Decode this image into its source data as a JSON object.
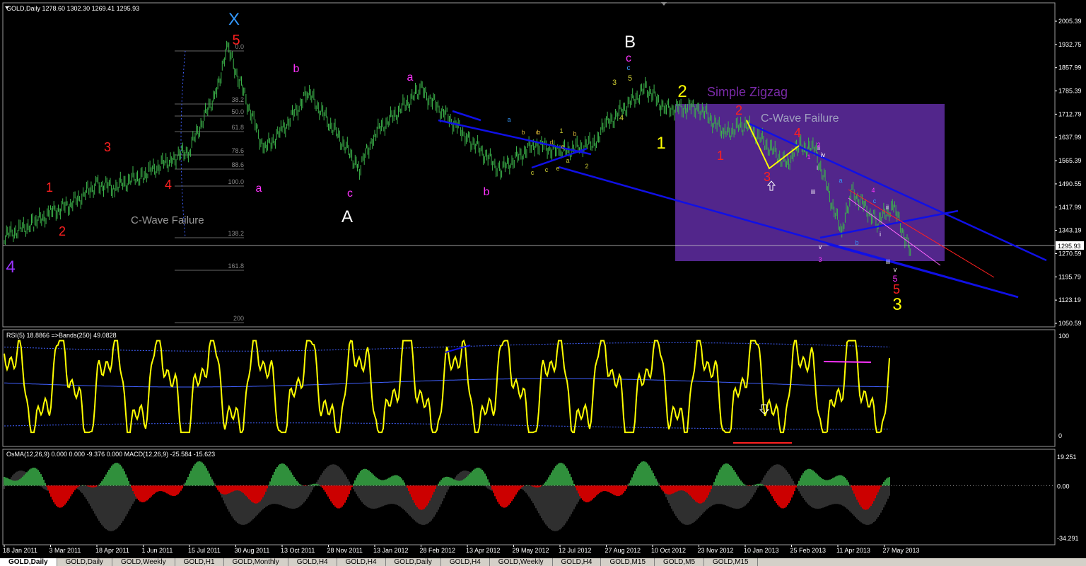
{
  "colors": {
    "background": "#000000",
    "candle": "#3cb44b",
    "grid": "#ffffff",
    "panel_border": "#9a9a9a",
    "axis_text": "#ffffff",
    "trendline": "#1010e6",
    "box": "#5b2a9a",
    "rsi_line": "#ffff00",
    "rsi_band": "#4060ff",
    "osma_pos": "#3cb44b",
    "osma_neg": "#ff0000",
    "macd_line": "#c0c0c0"
  },
  "main": {
    "header": "GOLD,Daily  1278.60 1302.30 1269.41 1295.93",
    "current_price": "1295.93",
    "price_ticks": [
      "2005.39",
      "1932.75",
      "1857.99",
      "1785.39",
      "1712.79",
      "1637.99",
      "1565.39",
      "1490.55",
      "1417.99",
      "1343.19",
      "1270.59",
      "1195.79",
      "1123.19",
      "1050.59"
    ],
    "fib_levels": [
      "0.0",
      "38.2",
      "50.0",
      "61.8",
      "78.6",
      "88.6",
      "100.0",
      "138.2",
      "161.8",
      "200"
    ],
    "box_title": "Simple Zigzag",
    "box_subtitle": "C-Wave Failure",
    "left_note": "C-Wave Failure",
    "wave_labels": [
      {
        "text": "X",
        "color": "#3399ff"
      },
      {
        "text": "5",
        "color": "#ff2020"
      },
      {
        "text": "B",
        "color": "#ffffff"
      },
      {
        "text": "A",
        "color": "#ffffff"
      },
      {
        "text": "1",
        "color": "#ff2020"
      },
      {
        "text": "2",
        "color": "#ff2020"
      },
      {
        "text": "3",
        "color": "#ff2020"
      },
      {
        "text": "4",
        "color": "#ff2020"
      },
      {
        "text": "a",
        "color": "#ff33ff"
      },
      {
        "text": "b",
        "color": "#ff33ff"
      },
      {
        "text": "a",
        "color": "#ff33ff"
      },
      {
        "text": "c",
        "color": "#ff33ff"
      },
      {
        "text": "b",
        "color": "#ff33ff"
      },
      {
        "text": "c",
        "color": "#ff33ff"
      },
      {
        "text": "c",
        "color": "#3399ff"
      },
      {
        "text": "3",
        "color": "#cccc33"
      },
      {
        "text": "5",
        "color": "#cccc33"
      },
      {
        "text": "4",
        "color": "#cccc33"
      },
      {
        "text": "2",
        "color": "#ffff00"
      },
      {
        "text": "1",
        "color": "#ffff00"
      },
      {
        "text": "2",
        "color": "#ff2020"
      },
      {
        "text": "1",
        "color": "#ff2020"
      },
      {
        "text": "3",
        "color": "#ff2020"
      },
      {
        "text": "4",
        "color": "#ff2020"
      },
      {
        "text": "5",
        "color": "#ff2020"
      },
      {
        "text": "3",
        "color": "#ffff00"
      },
      {
        "text": "4",
        "color": "#9933ff"
      },
      {
        "text": "5",
        "color": "#ff33ff"
      }
    ],
    "small_labels": [
      "a",
      "b",
      "c",
      "d",
      "e",
      "1",
      "2",
      "b",
      "a",
      "c",
      "e",
      "b",
      "c",
      "i",
      "ii",
      "iii",
      "iv",
      "v",
      "i",
      "ii",
      "iii",
      "v",
      "a",
      "b",
      "c",
      "4",
      "1",
      "2",
      "3"
    ]
  },
  "rsi": {
    "header": "RSI(5) 18.8866  =>Bands(250) 49.0828",
    "ticks": [
      "100",
      "0"
    ]
  },
  "osma": {
    "header": "OsMA(12,26,9) 0.000 0.000 -9.376 0.000  MACD(12,26,9) -25.584 -15.623",
    "ticks": [
      "19.251",
      "0.00",
      "-34.291"
    ]
  },
  "time_ticks": [
    "18 Jan 2011",
    "3 Mar 2011",
    "18 Apr 2011",
    "1 Jun 2011",
    "15 Jul 2011",
    "30 Aug 2011",
    "13 Oct 2011",
    "28 Nov 2011",
    "13 Jan 2012",
    "28 Feb 2012",
    "13 Apr 2012",
    "29 May 2012",
    "12 Jul 2012",
    "27 Aug 2012",
    "10 Oct 2012",
    "23 Nov 2012",
    "10 Jan 2013",
    "25 Feb 2013",
    "11 Apr 2013",
    "27 May 2013"
  ],
  "tabs": [
    {
      "label": "GOLD,Daily",
      "active": true
    },
    {
      "label": "GOLD,Daily"
    },
    {
      "label": "GOLD,Weekly"
    },
    {
      "label": "GOLD,H1"
    },
    {
      "label": "GOLD,Monthly"
    },
    {
      "label": "GOLD,H4"
    },
    {
      "label": "GOLD,H4"
    },
    {
      "label": "GOLD,Daily"
    },
    {
      "label": "GOLD,H4"
    },
    {
      "label": "GOLD,Weekly"
    },
    {
      "label": "GOLD,H4"
    },
    {
      "label": "GOLD,M15"
    },
    {
      "label": "GOLD,M5"
    },
    {
      "label": "GOLD,M15"
    }
  ],
  "chart_data": {
    "type": "line",
    "title": "GOLD,Daily  1278.60 1302.30 1269.41 1295.93",
    "x_type": "date",
    "x": [
      "2011-01-18",
      "2011-02-15",
      "2011-03-03",
      "2011-03-25",
      "2011-04-18",
      "2011-05-05",
      "2011-06-01",
      "2011-06-28",
      "2011-07-15",
      "2011-08-10",
      "2011-08-22",
      "2011-09-26",
      "2011-10-13",
      "2011-11-08",
      "2011-11-28",
      "2011-12-29",
      "2012-01-13",
      "2012-02-28",
      "2012-04-13",
      "2012-05-16",
      "2012-06-19",
      "2012-07-12",
      "2012-08-15",
      "2012-08-27",
      "2012-10-04",
      "2012-10-22",
      "2012-11-23",
      "2012-12-20",
      "2013-01-10",
      "2013-02-20",
      "2013-03-05",
      "2013-03-20",
      "2013-04-15",
      "2013-04-25",
      "2013-05-20",
      "2013-06-05",
      "2013-06-21"
    ],
    "y": [
      1325,
      1365,
      1400,
      1430,
      1490,
      1480,
      1520,
      1570,
      1600,
      1780,
      1920,
      1600,
      1660,
      1780,
      1690,
      1540,
      1650,
      1790,
      1640,
      1535,
      1620,
      1590,
      1620,
      1680,
      1795,
      1730,
      1735,
      1650,
      1680,
      1555,
      1610,
      1600,
      1330,
      1470,
      1370,
      1420,
      1275
    ],
    "ylim": [
      1050.59,
      2030
    ],
    "y_ticks": [
      2005.39,
      1932.75,
      1857.99,
      1785.39,
      1712.79,
      1637.99,
      1565.39,
      1490.55,
      1417.99,
      1343.19,
      1270.59,
      1195.79,
      1123.19,
      1050.59
    ],
    "last_price": 1295.93,
    "subplots": [
      {
        "name": "RSI(5)",
        "value": 18.8866,
        "bands_period": 250,
        "bands_value": 49.0828,
        "ylim": [
          0,
          100
        ]
      },
      {
        "name": "OsMA(12,26,9) / MACD(12,26,9)",
        "macd": -25.584,
        "signal": -15.623,
        "ylim": [
          -34.291,
          19.251
        ]
      }
    ]
  }
}
